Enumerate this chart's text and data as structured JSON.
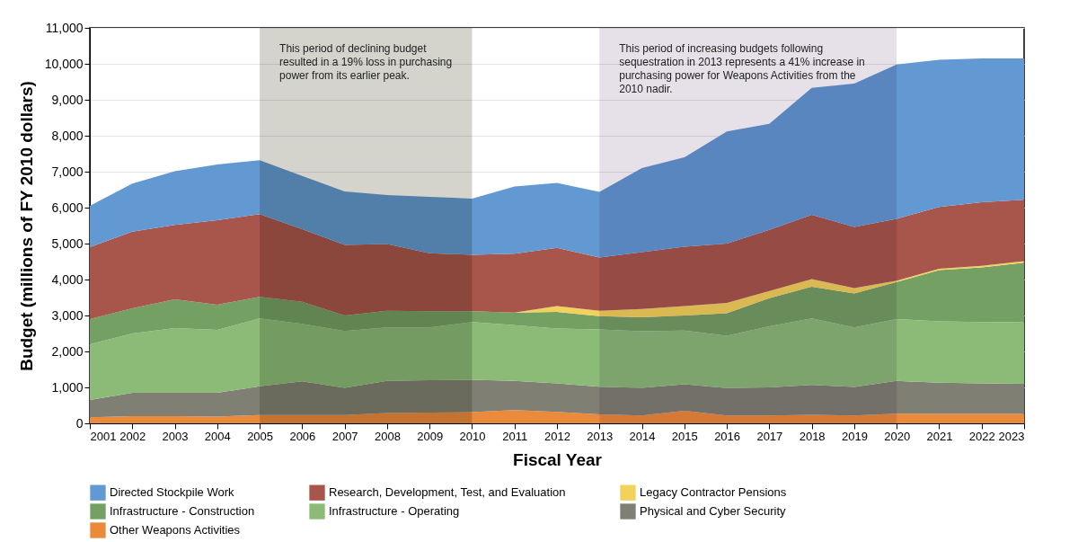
{
  "chart_data": {
    "type": "area",
    "stacked": true,
    "xlabel": "Fiscal Year",
    "ylabel": "Budget (millions of  FY 2010 dollars)",
    "x": [
      2001,
      2002,
      2003,
      2004,
      2005,
      2006,
      2007,
      2008,
      2009,
      2010,
      2011,
      2012,
      2013,
      2014,
      2015,
      2016,
      2017,
      2018,
      2019,
      2020,
      2021,
      2022,
      2023
    ],
    "xlim": [
      2001,
      2023
    ],
    "xticks": [
      2001,
      2002,
      2003,
      2004,
      2005,
      2006,
      2007,
      2008,
      2009,
      2010,
      2011,
      2012,
      2013,
      2014,
      2015,
      2016,
      2017,
      2018,
      2019,
      2020,
      2021,
      2022,
      2023
    ],
    "ylim": [
      0,
      11000
    ],
    "yticks": [
      0,
      {
        "value": 1000,
        "label": "1,000"
      },
      {
        "value": 2000,
        "label": "2,000"
      },
      {
        "value": 3000,
        "label": "3,000"
      },
      {
        "value": 4000,
        "label": "4,000"
      },
      {
        "value": 5000,
        "label": "5,000"
      },
      {
        "value": 6000,
        "label": "6,000"
      },
      {
        "value": 7000,
        "label": "7,000"
      },
      {
        "value": 8000,
        "label": "8,000"
      },
      {
        "value": 9000,
        "label": "9,000"
      },
      {
        "value": 10000,
        "label": "10,000"
      },
      {
        "value": 11000,
        "label": "11,000"
      }
    ],
    "grid": "y",
    "legend": "bottom",
    "series": [
      {
        "name": "Other Weapons Activities",
        "color": "#ec8a3c",
        "values": [
          170,
          200,
          200,
          190,
          230,
          230,
          230,
          290,
          300,
          310,
          370,
          320,
          250,
          220,
          350,
          220,
          220,
          240,
          220,
          270,
          260,
          260,
          260
        ]
      },
      {
        "name": "Physical and Cyber Security",
        "color": "#7f7f74",
        "values": [
          480,
          650,
          650,
          660,
          800,
          940,
          760,
          890,
          900,
          900,
          810,
          790,
          770,
          770,
          740,
          760,
          780,
          830,
          790,
          910,
          870,
          850,
          840
        ]
      },
      {
        "name": "Infrastructure - Operating",
        "color": "#8cbb78",
        "values": [
          1550,
          1650,
          1800,
          1750,
          1890,
          1600,
          1580,
          1490,
          1470,
          1610,
          1550,
          1530,
          1590,
          1570,
          1490,
          1460,
          1700,
          1850,
          1660,
          1720,
          1710,
          1710,
          1710
        ]
      },
      {
        "name": "Infrastructure - Construction",
        "color": "#74a064",
        "values": [
          700,
          700,
          800,
          700,
          600,
          610,
          430,
          460,
          450,
          300,
          350,
          460,
          370,
          390,
          420,
          620,
          780,
          880,
          940,
          1030,
          1420,
          1520,
          1660
        ]
      },
      {
        "name": "Legacy Contractor Pensions",
        "color": "#f2d25a",
        "values": [
          0,
          0,
          0,
          0,
          0,
          0,
          0,
          0,
          0,
          0,
          0,
          160,
          150,
          230,
          260,
          290,
          200,
          210,
          150,
          40,
          40,
          40,
          40
        ]
      },
      {
        "name": "Research, Development, Test, and Evaluation",
        "color": "#a8554c",
        "values": [
          2000,
          2130,
          2070,
          2350,
          2300,
          2020,
          1960,
          1860,
          1610,
          1570,
          1640,
          1620,
          1480,
          1580,
          1650,
          1650,
          1700,
          1790,
          1700,
          1720,
          1720,
          1770,
          1710
        ]
      },
      {
        "name": "Directed Stockpile Work",
        "color": "#6399d2",
        "values": [
          1150,
          1340,
          1490,
          1550,
          1500,
          1480,
          1490,
          1360,
          1570,
          1560,
          1870,
          1810,
          1830,
          2340,
          2490,
          3120,
          2950,
          3530,
          3990,
          4290,
          4090,
          4000,
          3930
        ]
      }
    ],
    "bands": [
      {
        "axis": "x",
        "from": 2005,
        "to": 2010,
        "color": "#b8b8ac",
        "label": "This period of declining budget resulted in a 19% loss in purchasing power from its earlier peak."
      },
      {
        "axis": "x",
        "from": 2013,
        "to": 2020,
        "color": "#d6ccd8",
        "label": "This period of increasing budgets following sequestration in 2013 represents a 41% increase in purchasing power for Weapons Activities from the 2010 nadir."
      }
    ]
  }
}
